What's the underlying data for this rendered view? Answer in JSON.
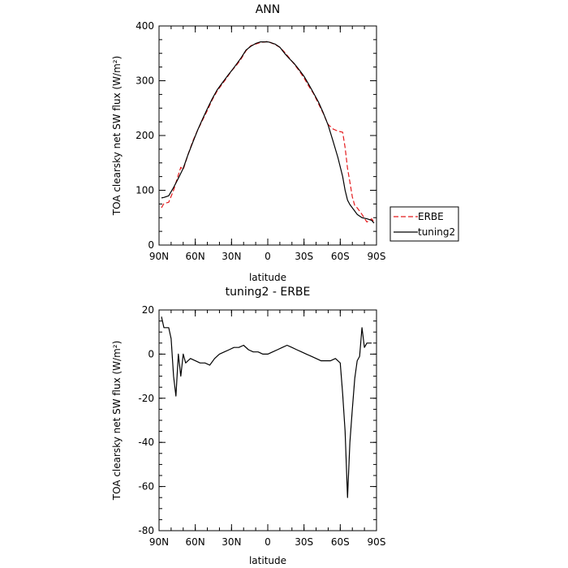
{
  "chart_data": [
    {
      "type": "line",
      "title": "ANN",
      "xlabel": "latitude",
      "ylabel": "TOA clearsky net SW flux (W/m²)",
      "xlim": [
        -90,
        90
      ],
      "ylim": [
        0,
        400
      ],
      "x_ticks": [
        {
          "value": -90,
          "label": "90N"
        },
        {
          "value": -60,
          "label": "60N"
        },
        {
          "value": -30,
          "label": "30N"
        },
        {
          "value": 0,
          "label": "0"
        },
        {
          "value": 30,
          "label": "30S"
        },
        {
          "value": 60,
          "label": "60S"
        },
        {
          "value": 90,
          "label": "90S"
        }
      ],
      "y_ticks": [
        0,
        100,
        200,
        300,
        400
      ],
      "legend_position": "right",
      "series": [
        {
          "name": "ERBE",
          "color": "#e41a1c",
          "dash": "dashed",
          "x": [
            -88,
            -86,
            -82,
            -78,
            -74,
            -72,
            -70,
            -66,
            -62,
            -58,
            -54,
            -50,
            -46,
            -42,
            -38,
            -34,
            -30,
            -26,
            -22,
            -18,
            -14,
            -10,
            -6,
            -2,
            0,
            2,
            6,
            10,
            14,
            18,
            22,
            26,
            30,
            34,
            38,
            42,
            46,
            50,
            54,
            58,
            62,
            64,
            66,
            68,
            70,
            72,
            74,
            78,
            82,
            86,
            88
          ],
          "y": [
            68,
            76,
            78,
            100,
            128,
            142,
            138,
            165,
            190,
            210,
            228,
            246,
            265,
            281,
            293,
            305,
            318,
            328,
            340,
            355,
            364,
            367,
            370,
            371,
            372,
            370,
            366,
            361,
            352,
            341,
            330,
            318,
            305,
            290,
            276,
            258,
            240,
            220,
            212,
            208,
            206,
            178,
            140,
            115,
            88,
            72,
            68,
            56,
            42,
            48,
            42
          ]
        },
        {
          "name": "tuning2",
          "color": "#000000",
          "dash": "solid",
          "x": [
            -88,
            -86,
            -82,
            -78,
            -74,
            -70,
            -66,
            -62,
            -58,
            -54,
            -50,
            -46,
            -42,
            -38,
            -34,
            -30,
            -26,
            -22,
            -18,
            -14,
            -10,
            -6,
            -2,
            0,
            2,
            6,
            10,
            14,
            18,
            22,
            26,
            30,
            34,
            38,
            42,
            46,
            50,
            54,
            58,
            62,
            64,
            66,
            68,
            70,
            72,
            74,
            78,
            82,
            86,
            88
          ],
          "y": [
            86,
            87,
            90,
            105,
            122,
            140,
            165,
            188,
            210,
            230,
            249,
            267,
            283,
            295,
            307,
            318,
            330,
            342,
            356,
            363,
            368,
            371,
            371,
            371,
            370,
            367,
            361,
            350,
            340,
            331,
            320,
            308,
            293,
            277,
            261,
            241,
            219,
            190,
            160,
            125,
            100,
            82,
            74,
            68,
            62,
            56,
            50,
            48,
            45,
            40
          ]
        }
      ]
    },
    {
      "type": "line",
      "title": "tuning2 - ERBE",
      "xlabel": "latitude",
      "ylabel": "TOA clearsky net SW flux (W/m²)",
      "xlim": [
        -90,
        90
      ],
      "ylim": [
        -80,
        20
      ],
      "x_ticks": [
        {
          "value": -90,
          "label": "90N"
        },
        {
          "value": -60,
          "label": "60N"
        },
        {
          "value": -30,
          "label": "30N"
        },
        {
          "value": 0,
          "label": "0"
        },
        {
          "value": 30,
          "label": "30S"
        },
        {
          "value": 60,
          "label": "60S"
        },
        {
          "value": 90,
          "label": "90S"
        }
      ],
      "y_ticks": [
        -80,
        -60,
        -40,
        -20,
        0,
        20
      ],
      "series": [
        {
          "color": "#000000",
          "dash": "solid",
          "x": [
            -88,
            -86,
            -82,
            -80,
            -78,
            -76,
            -74,
            -72,
            -70,
            -68,
            -66,
            -64,
            -60,
            -56,
            -52,
            -48,
            -44,
            -40,
            -36,
            -32,
            -28,
            -24,
            -20,
            -16,
            -12,
            -8,
            -4,
            0,
            4,
            8,
            12,
            16,
            20,
            24,
            28,
            32,
            36,
            40,
            44,
            48,
            52,
            56,
            60,
            62,
            64,
            66,
            68,
            70,
            72,
            74,
            76,
            78,
            80,
            82,
            84,
            86
          ],
          "y": [
            17,
            12,
            12,
            7,
            -10,
            -19,
            0,
            -10,
            0,
            -4,
            -3,
            -2,
            -3,
            -4,
            -4,
            -5,
            -2,
            0,
            1,
            2,
            3,
            3,
            4,
            2,
            1,
            1,
            0,
            0,
            1,
            2,
            3,
            4,
            3,
            2,
            1,
            0,
            -1,
            -2,
            -3,
            -3,
            -3,
            -2,
            -4,
            -18,
            -35,
            -65,
            -40,
            -25,
            -11,
            -3,
            -1,
            12,
            3,
            5,
            5,
            5
          ]
        }
      ]
    }
  ]
}
